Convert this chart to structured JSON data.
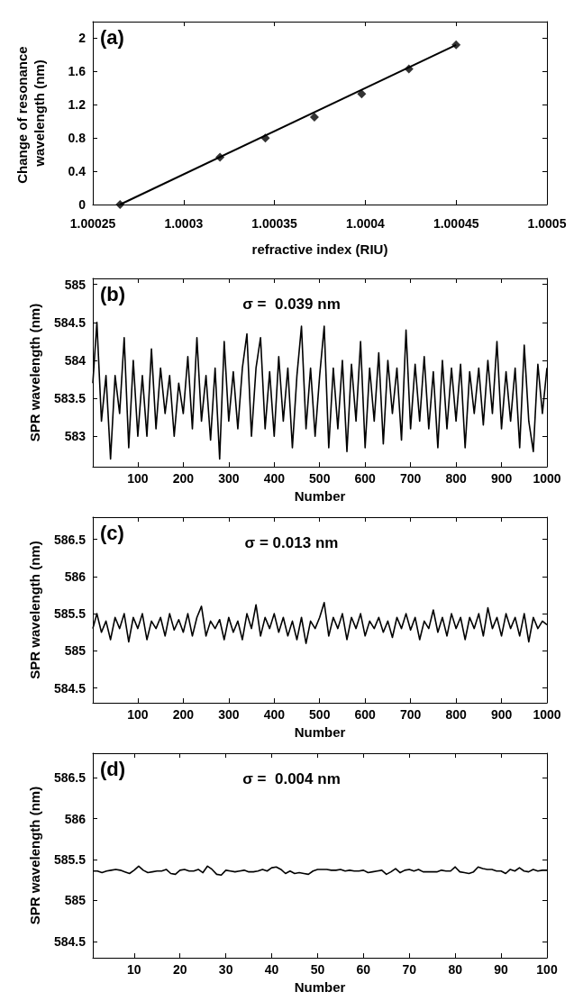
{
  "chart_data": [
    {
      "type": "scatter",
      "xlabel": "refractive index (RIU)",
      "ylabel": "Change of resonance wavelength (nm)",
      "annotations": [
        "(a)"
      ],
      "xlim": [
        1.00025,
        1.0005
      ],
      "xticks": [
        1.00025,
        1.0003,
        1.00035,
        1.0004,
        1.00045,
        1.0005
      ],
      "ylim": [
        0,
        2.2
      ],
      "yticks": [
        0,
        0.4,
        0.8,
        1.2,
        1.6,
        2
      ],
      "grid": false,
      "marker": "diamond",
      "series": [
        {
          "color": "#000000",
          "x": [
            1.000265,
            1.00032,
            1.000345,
            1.000372,
            1.000398,
            1.000424,
            1.00045
          ],
          "values": [
            0,
            0.57,
            0.8,
            1.05,
            1.33,
            1.63,
            1.92
          ]
        },
        {
          "type": "line",
          "color": "#000000",
          "marker": "none",
          "line_style": "solid",
          "x": [
            1.000265,
            1.00045
          ],
          "values": [
            0,
            1.92
          ]
        }
      ]
    },
    {
      "type": "line",
      "xlabel": "Number",
      "ylabel": "SPR wavelength (nm)",
      "annotations": [
        "(b)",
        "σ =  0.039 nm"
      ],
      "xlim": [
        1,
        1000
      ],
      "xticks": [
        100,
        200,
        300,
        400,
        500,
        600,
        700,
        800,
        900,
        1000
      ],
      "ylim": [
        582.6,
        585.08
      ],
      "yticks": [
        583,
        583.5,
        584,
        584.5,
        585
      ],
      "grid": false,
      "marker": "none",
      "line_style": "solid",
      "series": [
        {
          "color": "#000000",
          "x": [
            1,
            10,
            20,
            30,
            40,
            50,
            60,
            70,
            80,
            90,
            100,
            110,
            120,
            130,
            140,
            150,
            160,
            170,
            180,
            190,
            200,
            210,
            220,
            230,
            240,
            250,
            260,
            270,
            280,
            290,
            300,
            310,
            320,
            330,
            340,
            350,
            360,
            370,
            380,
            390,
            400,
            410,
            420,
            430,
            440,
            450,
            460,
            470,
            480,
            490,
            500,
            510,
            520,
            530,
            540,
            550,
            560,
            570,
            580,
            590,
            600,
            610,
            620,
            630,
            640,
            650,
            660,
            670,
            680,
            690,
            700,
            710,
            720,
            730,
            740,
            750,
            760,
            770,
            780,
            790,
            800,
            810,
            820,
            830,
            840,
            850,
            860,
            870,
            880,
            890,
            900,
            910,
            920,
            930,
            940,
            950,
            960,
            970,
            980,
            990,
            1000
          ],
          "values": [
            583.7,
            584.5,
            583.2,
            583.8,
            582.7,
            583.8,
            583.3,
            584.3,
            582.85,
            584.0,
            583.0,
            583.8,
            583.0,
            584.15,
            583.1,
            583.9,
            583.3,
            583.8,
            583.0,
            583.7,
            583.3,
            584.05,
            583.1,
            584.3,
            583.2,
            583.8,
            582.95,
            583.9,
            582.7,
            584.25,
            583.2,
            583.85,
            583.1,
            583.9,
            584.35,
            583.0,
            583.9,
            584.3,
            583.1,
            583.85,
            583.0,
            584.05,
            583.2,
            583.9,
            582.85,
            583.8,
            584.45,
            583.1,
            583.9,
            583.0,
            583.8,
            584.45,
            582.85,
            583.9,
            583.1,
            584.0,
            582.8,
            583.95,
            583.2,
            584.25,
            582.85,
            583.9,
            583.2,
            584.1,
            582.9,
            584.0,
            583.3,
            583.9,
            582.95,
            584.4,
            583.1,
            583.95,
            583.2,
            584.05,
            583.1,
            583.85,
            582.85,
            584.0,
            583.1,
            583.9,
            583.2,
            583.95,
            582.85,
            583.85,
            583.3,
            583.9,
            583.15,
            584.0,
            583.3,
            584.25,
            583.1,
            583.85,
            583.2,
            583.9,
            582.85,
            584.2,
            583.2,
            582.8,
            583.95,
            583.3,
            583.9
          ]
        }
      ]
    },
    {
      "type": "line",
      "xlabel": "Number",
      "ylabel": "SPR wavelength (nm)",
      "annotations": [
        "(c)",
        "σ = 0.013 nm"
      ],
      "xlim": [
        1,
        1000
      ],
      "xticks": [
        100,
        200,
        300,
        400,
        500,
        600,
        700,
        800,
        900,
        1000
      ],
      "ylim": [
        584.3,
        586.8
      ],
      "yticks": [
        584.5,
        585,
        585.5,
        586,
        586.5
      ],
      "grid": false,
      "marker": "none",
      "line_style": "solid",
      "series": [
        {
          "color": "#000000",
          "x": [
            1,
            10,
            20,
            30,
            40,
            50,
            60,
            70,
            80,
            90,
            100,
            110,
            120,
            130,
            140,
            150,
            160,
            170,
            180,
            190,
            200,
            210,
            220,
            230,
            240,
            250,
            260,
            270,
            280,
            290,
            300,
            310,
            320,
            330,
            340,
            350,
            360,
            370,
            380,
            390,
            400,
            410,
            420,
            430,
            440,
            450,
            460,
            470,
            480,
            490,
            500,
            510,
            520,
            530,
            540,
            550,
            560,
            570,
            580,
            590,
            600,
            610,
            620,
            630,
            640,
            650,
            660,
            670,
            680,
            690,
            700,
            710,
            720,
            730,
            740,
            750,
            760,
            770,
            780,
            790,
            800,
            810,
            820,
            830,
            840,
            850,
            860,
            870,
            880,
            890,
            900,
            910,
            920,
            930,
            940,
            950,
            960,
            970,
            980,
            990,
            1000
          ],
          "values": [
            585.3,
            585.5,
            585.25,
            585.4,
            585.15,
            585.45,
            585.3,
            585.5,
            585.12,
            585.45,
            585.3,
            585.5,
            585.15,
            585.4,
            585.3,
            585.45,
            585.2,
            585.5,
            585.28,
            585.42,
            585.25,
            585.5,
            585.2,
            585.45,
            585.6,
            585.2,
            585.4,
            585.3,
            585.42,
            585.15,
            585.45,
            585.25,
            585.4,
            585.15,
            585.5,
            585.3,
            585.62,
            585.2,
            585.45,
            585.3,
            585.5,
            585.25,
            585.45,
            585.2,
            585.4,
            585.15,
            585.45,
            585.1,
            585.4,
            585.3,
            585.45,
            585.65,
            585.2,
            585.45,
            585.3,
            585.5,
            585.15,
            585.45,
            585.3,
            585.5,
            585.2,
            585.4,
            585.3,
            585.45,
            585.25,
            585.4,
            585.18,
            585.45,
            585.3,
            585.5,
            585.28,
            585.45,
            585.15,
            585.4,
            585.3,
            585.55,
            585.25,
            585.45,
            585.2,
            585.5,
            585.3,
            585.45,
            585.15,
            585.45,
            585.3,
            585.5,
            585.2,
            585.58,
            585.3,
            585.45,
            585.2,
            585.5,
            585.3,
            585.45,
            585.2,
            585.5,
            585.12,
            585.45,
            585.3,
            585.4,
            585.35
          ]
        }
      ]
    },
    {
      "type": "line",
      "xlabel": "Number",
      "ylabel": "SPR wavelength (nm)",
      "annotations": [
        "(d)",
        "σ =  0.004 nm"
      ],
      "xlim": [
        1,
        100
      ],
      "xticks": [
        10,
        20,
        30,
        40,
        50,
        60,
        70,
        80,
        90,
        100
      ],
      "ylim": [
        584.3,
        586.8
      ],
      "yticks": [
        584.5,
        585,
        585.5,
        586,
        586.5
      ],
      "grid": false,
      "marker": "none",
      "line_style": "solid",
      "series": [
        {
          "color": "#000000",
          "x": [
            1,
            2,
            3,
            4,
            5,
            6,
            7,
            8,
            9,
            10,
            11,
            12,
            13,
            14,
            15,
            16,
            17,
            18,
            19,
            20,
            21,
            22,
            23,
            24,
            25,
            26,
            27,
            28,
            29,
            30,
            31,
            32,
            33,
            34,
            35,
            36,
            37,
            38,
            39,
            40,
            41,
            42,
            43,
            44,
            45,
            46,
            47,
            48,
            49,
            50,
            51,
            52,
            53,
            54,
            55,
            56,
            57,
            58,
            59,
            60,
            61,
            62,
            63,
            64,
            65,
            66,
            67,
            68,
            69,
            70,
            71,
            72,
            73,
            74,
            75,
            76,
            77,
            78,
            79,
            80,
            81,
            82,
            83,
            84,
            85,
            86,
            87,
            88,
            89,
            90,
            91,
            92,
            93,
            94,
            95,
            96,
            97,
            98,
            99,
            100
          ],
          "values": [
            585.36,
            585.36,
            585.34,
            585.36,
            585.37,
            585.38,
            585.37,
            585.35,
            585.33,
            585.37,
            585.42,
            585.37,
            585.34,
            585.35,
            585.36,
            585.36,
            585.38,
            585.33,
            585.32,
            585.37,
            585.38,
            585.36,
            585.36,
            585.38,
            585.34,
            585.42,
            585.38,
            585.32,
            585.31,
            585.37,
            585.36,
            585.35,
            585.36,
            585.37,
            585.35,
            585.35,
            585.36,
            585.38,
            585.36,
            585.4,
            585.41,
            585.38,
            585.33,
            585.36,
            585.33,
            585.34,
            585.33,
            585.32,
            585.36,
            585.38,
            585.38,
            585.38,
            585.37,
            585.37,
            585.38,
            585.36,
            585.37,
            585.36,
            585.36,
            585.37,
            585.34,
            585.35,
            585.36,
            585.37,
            585.32,
            585.35,
            585.39,
            585.34,
            585.37,
            585.38,
            585.36,
            585.38,
            585.35,
            585.35,
            585.35,
            585.35,
            585.37,
            585.36,
            585.36,
            585.41,
            585.35,
            585.34,
            585.33,
            585.35,
            585.41,
            585.39,
            585.38,
            585.38,
            585.36,
            585.36,
            585.33,
            585.38,
            585.36,
            585.4,
            585.36,
            585.35,
            585.38,
            585.36,
            585.37,
            585.37
          ]
        }
      ]
    }
  ]
}
